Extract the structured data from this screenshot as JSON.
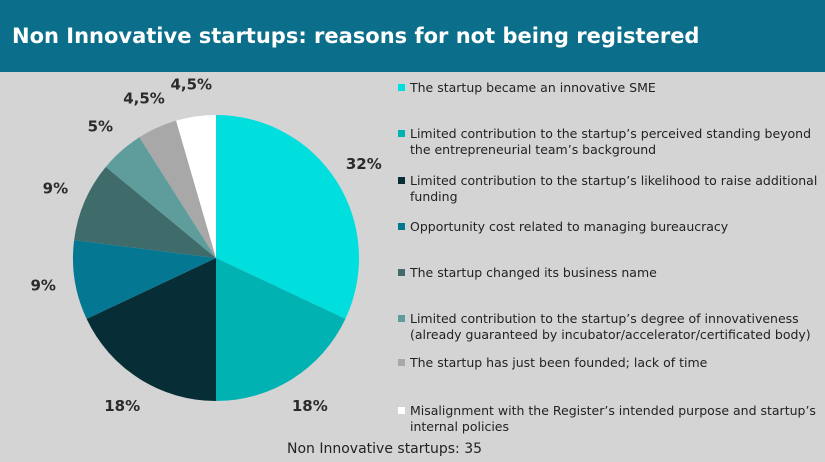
{
  "header": {
    "title": "Non Innovative startups: reasons for not being registered"
  },
  "chart_data": {
    "type": "pie",
    "slices": [
      {
        "label": "The startup became an innovative SME",
        "value": 32,
        "display": "32%",
        "color": "#00dede"
      },
      {
        "label": "Limited contribution to the startup’s perceived standing beyond the entrepreneurial team’s background",
        "value": 18,
        "display": "18%",
        "color": "#00b2b2"
      },
      {
        "label": "Limited contribution to the startup’s likelihood to raise additional funding",
        "value": 18,
        "display": "18%",
        "color": "#072e36"
      },
      {
        "label": "Opportunity cost related to managing bureaucracy",
        "value": 9,
        "display": "9%",
        "color": "#047893"
      },
      {
        "label": "The startup changed its business name",
        "value": 9,
        "display": "9%",
        "color": "#3f6b6b"
      },
      {
        "label": "Limited contribution to the startup’s degree of innovativeness (already guaranteed by incubator/accelerator/certificated body)",
        "value": 5,
        "display": "5%",
        "color": "#5f9d9d"
      },
      {
        "label": "The startup has just been founded; lack of time",
        "value": 4.5,
        "display": "4,5%",
        "color": "#a8a8a8"
      },
      {
        "label": "Misalignment with the Register’s intended purpose and startup’s internal policies",
        "value": 4.5,
        "display": "4,5%",
        "color": "#ffffff"
      }
    ],
    "legend_position": "right"
  },
  "footer": {
    "note": "Non Innovative startups: 35"
  }
}
